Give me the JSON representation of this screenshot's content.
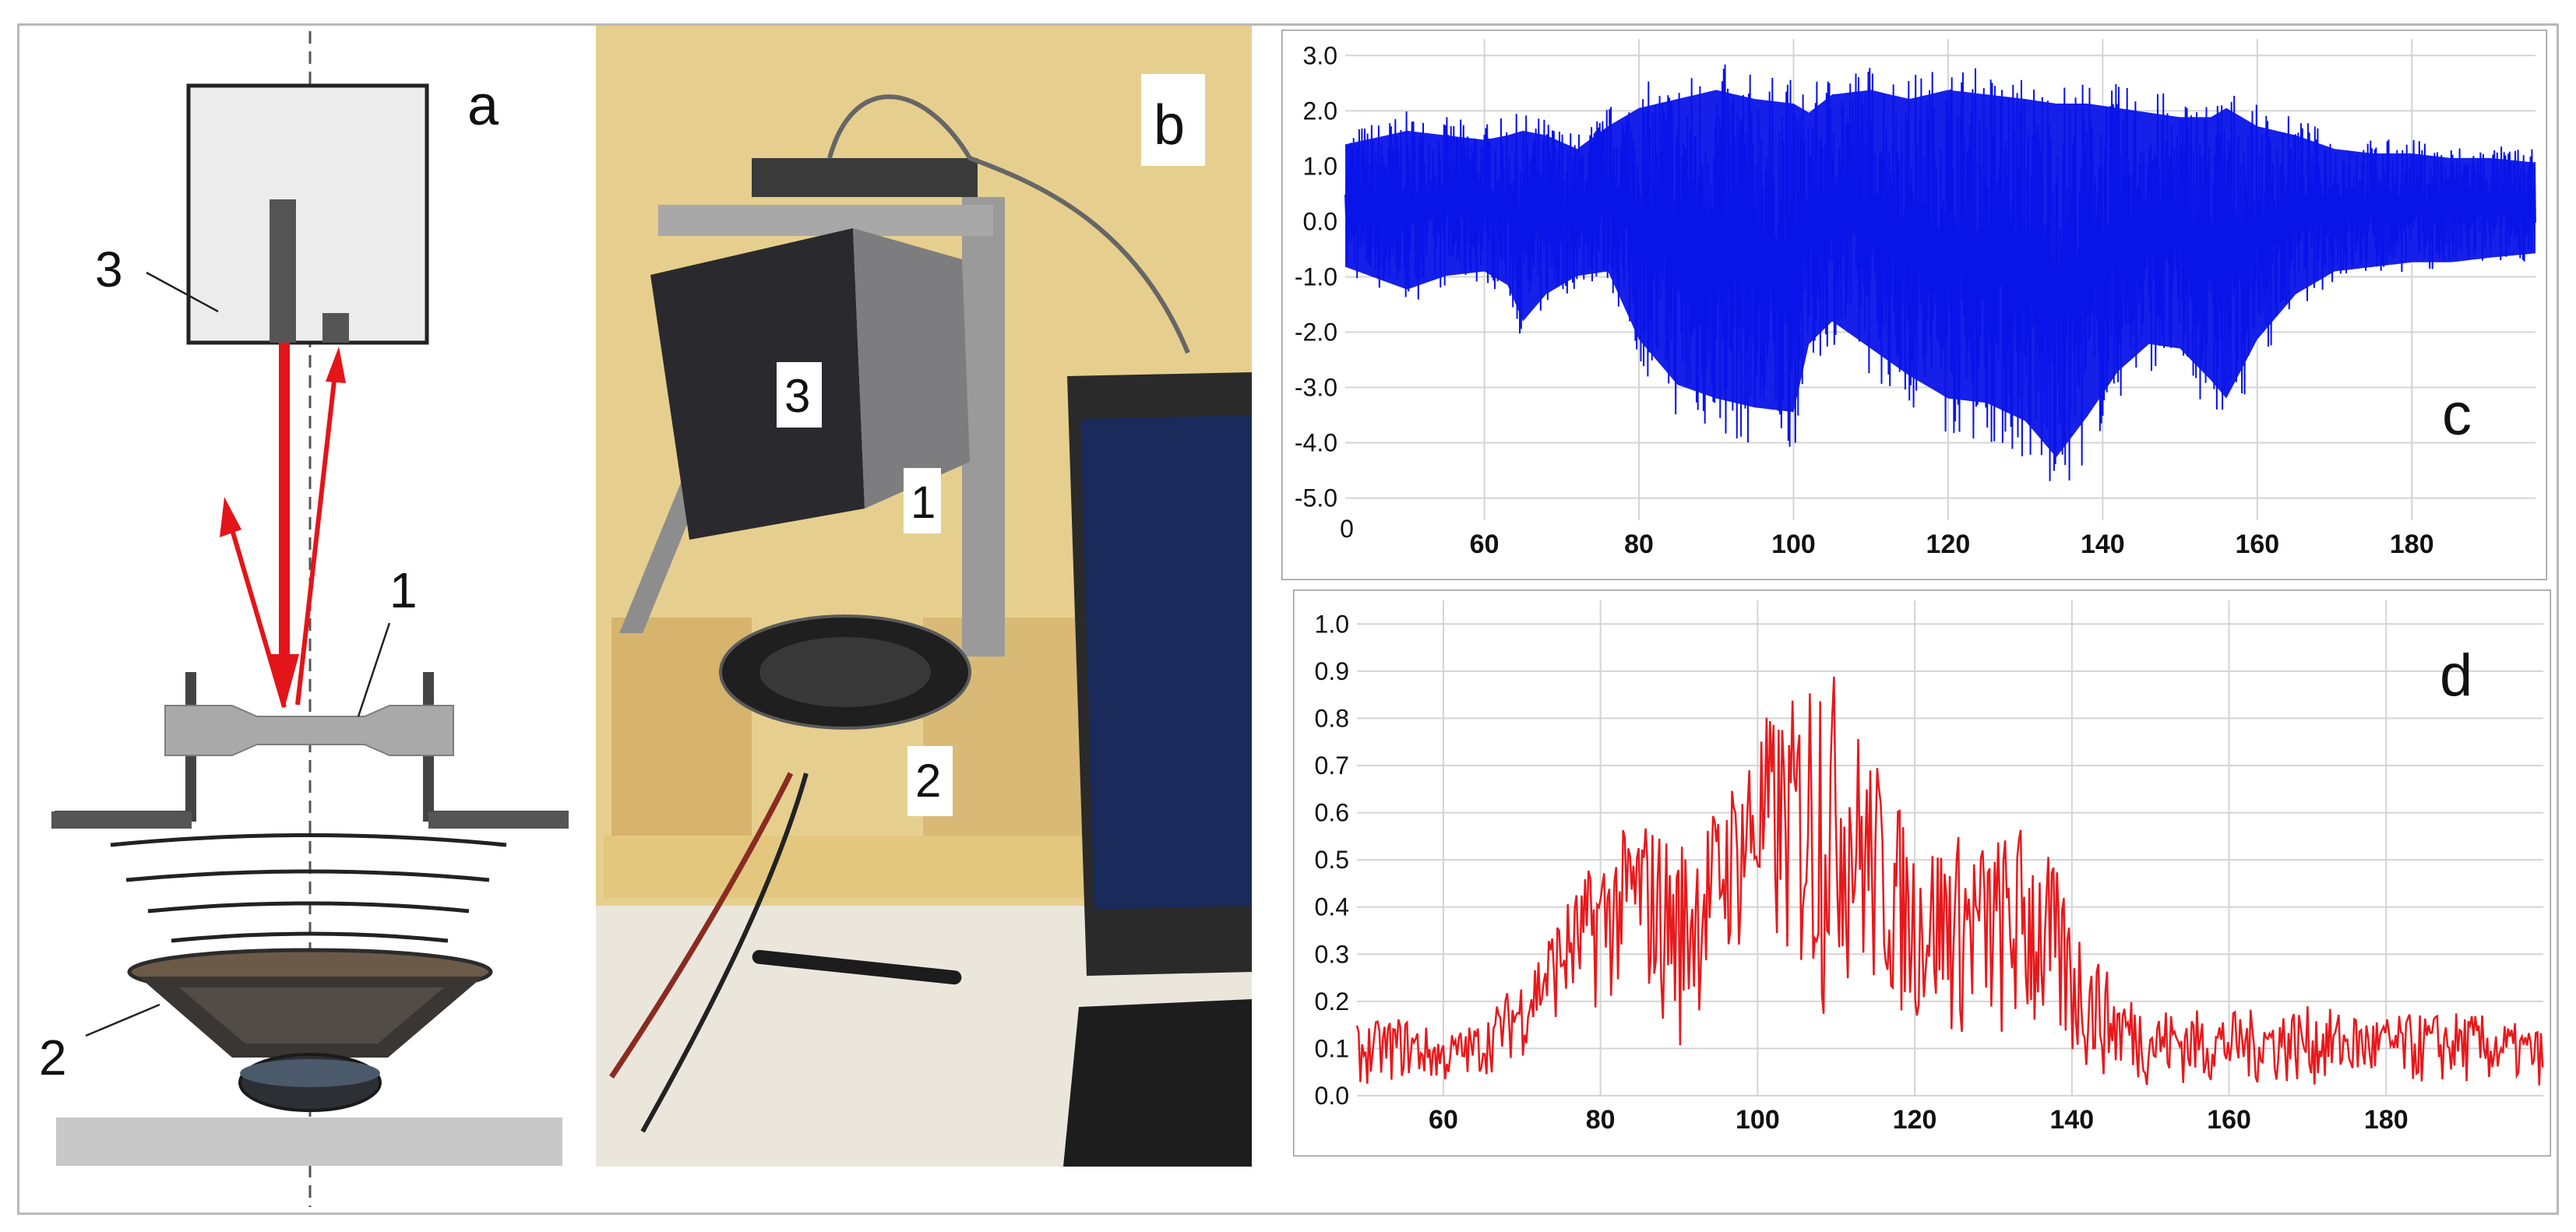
{
  "panels": {
    "a": {
      "label": "a",
      "callouts": {
        "sensor": "3",
        "specimen": "1",
        "speaker": "2"
      }
    },
    "b": {
      "label": "b",
      "callouts": {
        "sensor": "3",
        "specimen": "1",
        "speaker": "2"
      }
    },
    "c": {
      "label": "c"
    },
    "d": {
      "label": "d"
    }
  },
  "colors": {
    "laser": "#e3151a",
    "signal_c": "#0a14e8",
    "signal_d": "#e8191c",
    "grid": "#d4d4d4",
    "photo_background": "#e6cf8e"
  },
  "chart_data": [
    {
      "id": "c",
      "type": "line",
      "title": "",
      "xlabel": "",
      "ylabel": "",
      "x_ticks": [
        60,
        80,
        100,
        120,
        140,
        160,
        180
      ],
      "x_origin_label": "0",
      "y_ticks": [
        "3.0",
        "2.0",
        "1.0",
        "0.0",
        "-1.0",
        "-2.0",
        "-3.0",
        "-4.0",
        "-5.0"
      ],
      "xlim": [
        42,
        196
      ],
      "ylim": [
        -5.4,
        3.3
      ],
      "series": [
        {
          "color": "#0a14e8",
          "envelope_x": [
            42,
            50,
            55,
            60,
            63,
            65,
            68,
            72,
            76,
            80,
            85,
            90,
            95,
            100,
            102,
            105,
            110,
            115,
            120,
            125,
            130,
            134,
            138,
            142,
            146,
            150,
            154,
            156,
            160,
            165,
            170,
            175,
            180,
            185,
            190,
            196
          ],
          "envelope_upper": [
            1.7,
            2.0,
            1.9,
            1.8,
            1.9,
            2.0,
            1.9,
            1.6,
            2.1,
            2.5,
            2.7,
            2.9,
            2.7,
            2.6,
            2.4,
            2.8,
            2.9,
            2.7,
            2.9,
            2.8,
            2.7,
            2.6,
            2.6,
            2.5,
            2.4,
            2.3,
            2.3,
            2.5,
            2.1,
            1.9,
            1.6,
            1.5,
            1.5,
            1.4,
            1.4,
            1.3
          ],
          "envelope_lower": [
            -1.0,
            -1.5,
            -1.2,
            -1.1,
            -1.4,
            -2.2,
            -1.6,
            -1.2,
            -1.1,
            -2.6,
            -3.6,
            -3.9,
            -4.1,
            -4.2,
            -2.7,
            -2.2,
            -2.8,
            -3.4,
            -3.9,
            -4.0,
            -4.4,
            -5.2,
            -4.3,
            -3.3,
            -2.7,
            -2.8,
            -3.5,
            -3.9,
            -2.6,
            -1.6,
            -1.1,
            -1.0,
            -0.9,
            -0.9,
            -0.8,
            -0.7
          ]
        }
      ]
    },
    {
      "id": "d",
      "type": "line",
      "title": "",
      "xlabel": "",
      "ylabel": "",
      "x_ticks": [
        60,
        80,
        100,
        120,
        140,
        160,
        180
      ],
      "y_ticks": [
        "1.0",
        "0.9",
        "0.8",
        "0.7",
        "0.6",
        "0.5",
        "0.4",
        "0.3",
        "0.2",
        "0.1",
        "0.0"
      ],
      "xlim": [
        49,
        200
      ],
      "ylim": [
        0.0,
        1.05
      ],
      "series": [
        {
          "color": "#e8191c",
          "envelope_x": [
            49,
            55,
            60,
            65,
            70,
            75,
            80,
            85,
            90,
            95,
            100,
            105,
            108,
            110,
            115,
            120,
            125,
            130,
            135,
            140,
            145,
            150,
            160,
            170,
            180,
            190,
            200
          ],
          "envelope_upper": [
            0.15,
            0.17,
            0.13,
            0.16,
            0.26,
            0.4,
            0.52,
            0.6,
            0.55,
            0.62,
            0.8,
            0.85,
            1.03,
            0.88,
            0.72,
            0.55,
            0.56,
            0.55,
            0.6,
            0.4,
            0.25,
            0.19,
            0.18,
            0.19,
            0.17,
            0.18,
            0.14
          ],
          "envelope_lower": [
            0.02,
            0.03,
            0.02,
            0.04,
            0.08,
            0.16,
            0.18,
            0.22,
            0.08,
            0.26,
            0.3,
            0.22,
            0.12,
            0.24,
            0.18,
            0.14,
            0.12,
            0.1,
            0.08,
            0.05,
            0.03,
            0.02,
            0.02,
            0.02,
            0.02,
            0.02,
            0.02
          ]
        }
      ]
    }
  ]
}
